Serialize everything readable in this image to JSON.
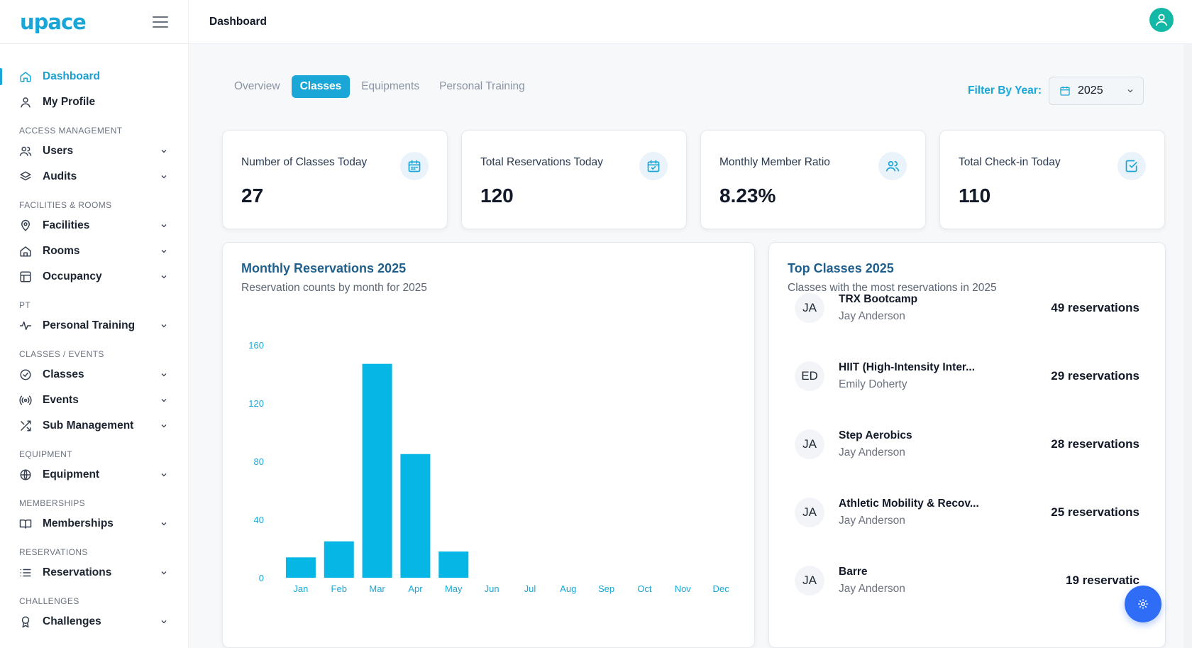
{
  "app": {
    "logo": "upace"
  },
  "header": {
    "title": "Dashboard"
  },
  "sidebar": {
    "top_items": [
      {
        "label": "Dashboard",
        "icon": "home-icon",
        "active": true
      },
      {
        "label": "My Profile",
        "icon": "user-icon"
      }
    ],
    "sections": [
      {
        "title": "ACCESS MANAGEMENT",
        "items": [
          {
            "label": "Users",
            "icon": "users-icon"
          },
          {
            "label": "Audits",
            "icon": "layers-icon"
          }
        ]
      },
      {
        "title": "FACILITIES & ROOMS",
        "items": [
          {
            "label": "Facilities",
            "icon": "map-pin-icon"
          },
          {
            "label": "Rooms",
            "icon": "house-icon"
          },
          {
            "label": "Occupancy",
            "icon": "grid-icon"
          }
        ]
      },
      {
        "title": "PT",
        "items": [
          {
            "label": "Personal Training",
            "icon": "activity-icon"
          }
        ]
      },
      {
        "title": "CLASSES / EVENTS",
        "items": [
          {
            "label": "Classes",
            "icon": "check-circle-icon"
          },
          {
            "label": "Events",
            "icon": "broadcast-icon"
          },
          {
            "label": "Sub Management",
            "icon": "shuffle-icon"
          }
        ]
      },
      {
        "title": "EQUIPMENT",
        "items": [
          {
            "label": "Equipment",
            "icon": "ball-icon"
          }
        ]
      },
      {
        "title": "MEMBERSHIPS",
        "items": [
          {
            "label": "Memberships",
            "icon": "book-icon"
          }
        ]
      },
      {
        "title": "RESERVATIONS",
        "items": [
          {
            "label": "Reservations",
            "icon": "list-icon"
          }
        ]
      },
      {
        "title": "CHALLENGES",
        "items": [
          {
            "label": "Challenges",
            "icon": "award-icon"
          }
        ]
      }
    ]
  },
  "tabs": [
    "Overview",
    "Classes",
    "Equipments",
    "Personal Training"
  ],
  "active_tab": "Classes",
  "filter": {
    "label": "Filter By Year:",
    "value": "2025"
  },
  "stats": [
    {
      "label": "Number of Classes Today",
      "value": "27",
      "icon": "calendar-icon"
    },
    {
      "label": "Total Reservations Today",
      "value": "120",
      "icon": "calendar-check-icon"
    },
    {
      "label": "Monthly Member Ratio",
      "value": "8.23%",
      "icon": "users-icon"
    },
    {
      "label": "Total Check-in Today",
      "value": "110",
      "icon": "checkbox-icon"
    }
  ],
  "monthly_panel": {
    "title": "Monthly Reservations 2025",
    "subtitle": "Reservation counts by month for 2025"
  },
  "top_classes": {
    "title": "Top Classes 2025",
    "subtitle": "Classes with the most reservations in 2025",
    "items": [
      {
        "initials": "JA",
        "name": "TRX Bootcamp",
        "instructor": "Jay Anderson",
        "count": "49 reservations"
      },
      {
        "initials": "ED",
        "name": "HIIT (High-Intensity Inter...",
        "instructor": "Emily Doherty",
        "count": "29 reservations"
      },
      {
        "initials": "JA",
        "name": "Step Aerobics",
        "instructor": "Jay Anderson",
        "count": "28 reservations"
      },
      {
        "initials": "JA",
        "name": "Athletic Mobility & Recov...",
        "instructor": "Jay Anderson",
        "count": "25 reservations"
      },
      {
        "initials": "JA",
        "name": "Barre",
        "instructor": "Jay Anderson",
        "count": "19 reservatic"
      }
    ]
  },
  "colors": {
    "accent": "#1aa7d8",
    "bar": "#06b6e4",
    "fab": "#2f6df6"
  },
  "chart_data": {
    "type": "bar",
    "title": "Monthly Reservations 2025",
    "subtitle": "Reservation counts by month for 2025",
    "categories": [
      "Jan",
      "Feb",
      "Mar",
      "Apr",
      "May",
      "Jun",
      "Jul",
      "Aug",
      "Sep",
      "Oct",
      "Nov",
      "Dec"
    ],
    "values": [
      14,
      25,
      147,
      85,
      18,
      0,
      0,
      0,
      0,
      0,
      0,
      0
    ],
    "yticks": [
      0,
      40,
      80,
      120,
      160
    ],
    "ylim": [
      0,
      160
    ],
    "grid": false,
    "legend": "none"
  }
}
